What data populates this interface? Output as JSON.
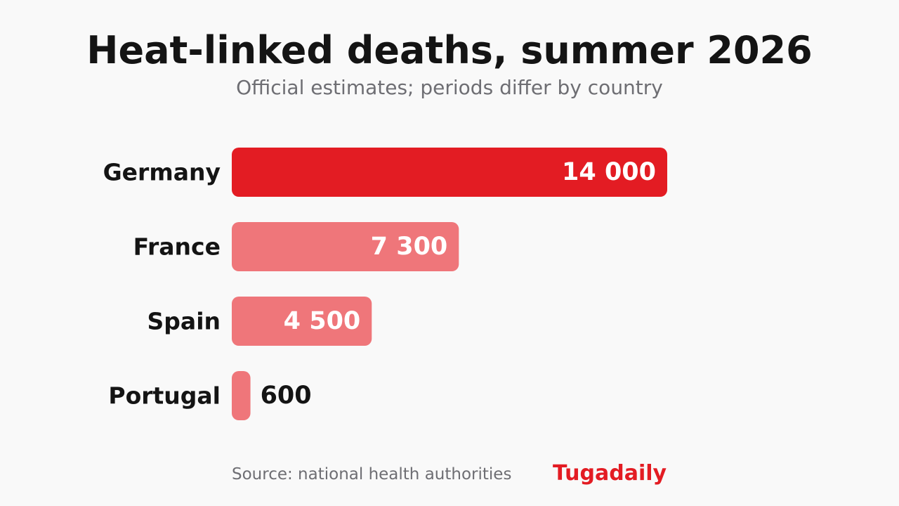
{
  "header": {
    "title": "Heat-linked deaths, summer 2026",
    "subtitle": "Official estimates; periods differ by country"
  },
  "chart_data": {
    "type": "bar",
    "orientation": "horizontal",
    "title": "Heat-linked deaths, summer 2026",
    "subtitle": "Official estimates; periods differ by country",
    "categories": [
      "Germany",
      "France",
      "Spain",
      "Portugal"
    ],
    "values": [
      14000,
      7300,
      4500,
      600
    ],
    "value_labels": [
      "14 000",
      "7 300",
      "4 500",
      "600"
    ],
    "xlabel": "",
    "ylabel": "",
    "xlim": [
      0,
      14000
    ],
    "grid": false,
    "legend": "none",
    "colors": [
      "#e31c23",
      "#ef767a",
      "#ef767a",
      "#ef767a"
    ]
  },
  "footer": {
    "source": "Source: national health authorities",
    "brand": "Tugadaily"
  },
  "colors": {
    "background": "#f9f9f9",
    "accent": "#e31c23",
    "secondary_bar": "#ef767a",
    "text": "#141414",
    "muted": "#6e6e73"
  }
}
